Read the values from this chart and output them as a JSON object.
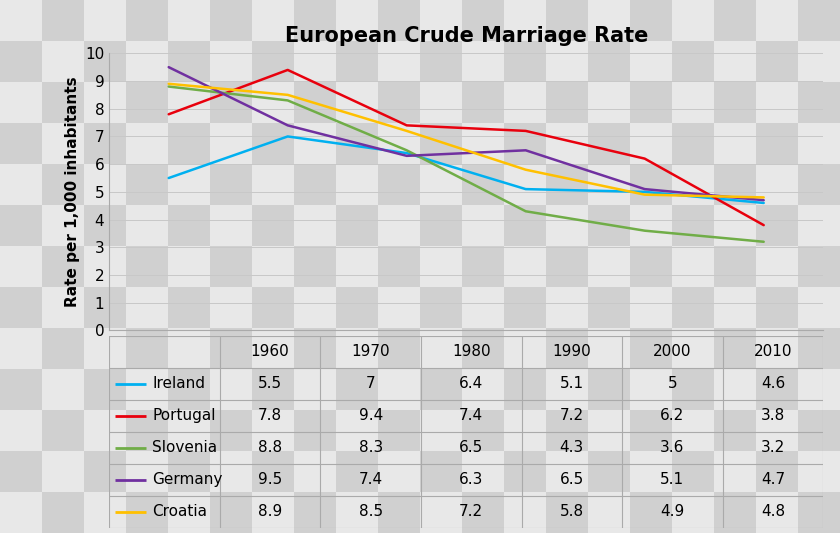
{
  "title": "European Crude Marriage Rate",
  "ylabel": "Rate per 1,000 inhabitants",
  "years": [
    1960,
    1970,
    1980,
    1990,
    2000,
    2010
  ],
  "series": [
    {
      "name": "Ireland",
      "color": "#00b0f0",
      "values": [
        5.5,
        7.0,
        6.4,
        5.1,
        5.0,
        4.6
      ]
    },
    {
      "name": "Portugal",
      "color": "#e8000d",
      "values": [
        7.8,
        9.4,
        7.4,
        7.2,
        6.2,
        3.8
      ]
    },
    {
      "name": "Slovenia",
      "color": "#70ad47",
      "values": [
        8.8,
        8.3,
        6.5,
        4.3,
        3.6,
        3.2
      ]
    },
    {
      "name": "Germany",
      "color": "#7030a0",
      "values": [
        9.5,
        7.4,
        6.3,
        6.5,
        5.1,
        4.7
      ]
    },
    {
      "name": "Croatia",
      "color": "#ffc000",
      "values": [
        8.9,
        8.5,
        7.2,
        5.8,
        4.9,
        4.8
      ]
    }
  ],
  "ylim": [
    0,
    10
  ],
  "yticks": [
    0,
    1,
    2,
    3,
    4,
    5,
    6,
    7,
    8,
    9,
    10
  ],
  "table_rows": [
    [
      "Ireland",
      "5.5",
      "7",
      "6.4",
      "5.1",
      "5",
      "4.6"
    ],
    [
      "Portugal",
      "7.8",
      "9.4",
      "7.4",
      "7.2",
      "6.2",
      "3.8"
    ],
    [
      "Slovenia",
      "8.8",
      "8.3",
      "6.5",
      "4.3",
      "3.6",
      "3.2"
    ],
    [
      "Germany",
      "9.5",
      "7.4",
      "6.3",
      "6.5",
      "5.1",
      "4.7"
    ],
    [
      "Croatia",
      "8.9",
      "8.5",
      "7.2",
      "5.8",
      "4.9",
      "4.8"
    ]
  ],
  "table_colors": [
    "#00b0f0",
    "#e8000d",
    "#70ad47",
    "#7030a0",
    "#ffc000"
  ],
  "checker_light": "#e8e8e8",
  "checker_dark": "#d0d0d0",
  "grid_color": "#c8c8c8",
  "title_fontsize": 15,
  "axis_label_fontsize": 11,
  "tick_fontsize": 11,
  "table_fontsize": 11,
  "line_width": 1.8
}
